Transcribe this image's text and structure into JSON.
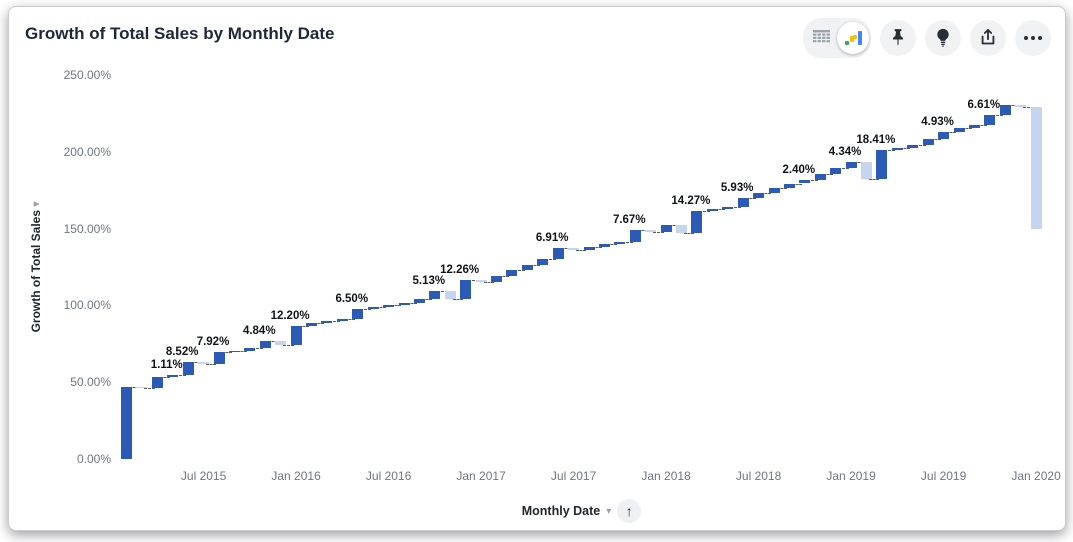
{
  "header": {
    "title": "Growth of Total Sales by Monthly Date"
  },
  "toolbar": {
    "icons": [
      "table-icon",
      "chart-icon",
      "pin-icon",
      "lightbulb-icon",
      "export-icon",
      "more-icon"
    ],
    "view_toggle_selected": "chart",
    "viz_icon_colors": {
      "green": "#34a853",
      "yellow": "#fbbc04",
      "blue": "#4285f4"
    },
    "button_bg": "#f1f2f4",
    "icon_color": "#272e36"
  },
  "chart_data": {
    "type": "bar",
    "subtype": "waterfall",
    "title": "Growth of Total Sales by Monthly Date",
    "xlabel": "Monthly Date",
    "ylabel": "Growth of Total Sales",
    "ylim": [
      0,
      250
    ],
    "grid": false,
    "legend": "none",
    "colors": {
      "increase": "#2b5bb7",
      "decrease": "#c6d4ef"
    },
    "y_ticks": [
      {
        "v": 250,
        "label": "250.00%"
      },
      {
        "v": 200,
        "label": "200.00%"
      },
      {
        "v": 150,
        "label": "150.00%"
      },
      {
        "v": 100,
        "label": "100.00%"
      },
      {
        "v": 50,
        "label": "50.00%"
      },
      {
        "v": 0,
        "label": "0.00%"
      }
    ],
    "x_ticks": [
      {
        "i": 5,
        "label": "Jul 2015"
      },
      {
        "i": 11,
        "label": "Jan 2016"
      },
      {
        "i": 17,
        "label": "Jul 2016"
      },
      {
        "i": 23,
        "label": "Jan 2017"
      },
      {
        "i": 29,
        "label": "Jul 2017"
      },
      {
        "i": 35,
        "label": "Jan 2018"
      },
      {
        "i": 41,
        "label": "Jul 2018"
      },
      {
        "i": 47,
        "label": "Jan 2019"
      },
      {
        "i": 53,
        "label": "Jul 2019"
      },
      {
        "i": 59,
        "label": "Jan 2020"
      }
    ],
    "bars": [
      {
        "m": "Feb 2015",
        "v": 47.0,
        "t": "i",
        "l": null
      },
      {
        "m": "Mar 2015",
        "v": -0.5,
        "t": "d",
        "l": null
      },
      {
        "m": "Apr 2015",
        "v": 7.0,
        "t": "i",
        "l": null
      },
      {
        "m": "May 2015",
        "v": 1.11,
        "t": "i",
        "l": "1.11%"
      },
      {
        "m": "Jun 2015",
        "v": 8.52,
        "t": "i",
        "l": "8.52%"
      },
      {
        "m": "Jul 2015",
        "v": -1.5,
        "t": "d",
        "l": null
      },
      {
        "m": "Aug 2015",
        "v": 7.92,
        "t": "i",
        "l": "7.92%"
      },
      {
        "m": "Sep 2015",
        "v": 1.0,
        "t": "i",
        "l": null
      },
      {
        "m": "Oct 2015",
        "v": 1.5,
        "t": "i",
        "l": null
      },
      {
        "m": "Nov 2015",
        "v": 4.84,
        "t": "i",
        "l": "4.84%"
      },
      {
        "m": "Dec 2015",
        "v": -2.5,
        "t": "d",
        "l": null
      },
      {
        "m": "Jan 2016",
        "v": 12.2,
        "t": "i",
        "l": "12.20%"
      },
      {
        "m": "Feb 2016",
        "v": 2.0,
        "t": "i",
        "l": null
      },
      {
        "m": "Mar 2016",
        "v": 1.0,
        "t": "i",
        "l": null
      },
      {
        "m": "Apr 2016",
        "v": 1.5,
        "t": "i",
        "l": null
      },
      {
        "m": "May 2016",
        "v": 6.5,
        "t": "i",
        "l": "6.50%"
      },
      {
        "m": "Jun 2016",
        "v": 1.5,
        "t": "i",
        "l": null
      },
      {
        "m": "Jul 2016",
        "v": 1.0,
        "t": "i",
        "l": null
      },
      {
        "m": "Aug 2016",
        "v": 1.5,
        "t": "i",
        "l": null
      },
      {
        "m": "Sep 2016",
        "v": 2.5,
        "t": "i",
        "l": null
      },
      {
        "m": "Oct 2016",
        "v": 5.13,
        "t": "i",
        "l": "5.13%"
      },
      {
        "m": "Nov 2016",
        "v": -5.0,
        "t": "d",
        "l": null
      },
      {
        "m": "Dec 2016",
        "v": 12.26,
        "t": "i",
        "l": "12.26%"
      },
      {
        "m": "Jan 2017",
        "v": -1.0,
        "t": "d",
        "l": null
      },
      {
        "m": "Feb 2017",
        "v": 3.5,
        "t": "i",
        "l": null
      },
      {
        "m": "Mar 2017",
        "v": 4.0,
        "t": "i",
        "l": null
      },
      {
        "m": "Apr 2017",
        "v": 3.5,
        "t": "i",
        "l": null
      },
      {
        "m": "May 2017",
        "v": 4.0,
        "t": "i",
        "l": null
      },
      {
        "m": "Jun 2017",
        "v": 6.91,
        "t": "i",
        "l": "6.91%"
      },
      {
        "m": "Jul 2017",
        "v": -1.5,
        "t": "d",
        "l": null
      },
      {
        "m": "Aug 2017",
        "v": 2.0,
        "t": "i",
        "l": null
      },
      {
        "m": "Sep 2017",
        "v": 2.0,
        "t": "i",
        "l": null
      },
      {
        "m": "Oct 2017",
        "v": 1.5,
        "t": "i",
        "l": null
      },
      {
        "m": "Nov 2017",
        "v": 7.67,
        "t": "i",
        "l": "7.67%"
      },
      {
        "m": "Dec 2017",
        "v": -1.5,
        "t": "d",
        "l": null
      },
      {
        "m": "Jan 2018",
        "v": 4.6,
        "t": "i",
        "l": null
      },
      {
        "m": "Feb 2018",
        "v": -5.0,
        "t": "d",
        "l": null
      },
      {
        "m": "Mar 2018",
        "v": 14.27,
        "t": "i",
        "l": "14.27%"
      },
      {
        "m": "Apr 2018",
        "v": 1.2,
        "t": "i",
        "l": null
      },
      {
        "m": "May 2018",
        "v": 1.5,
        "t": "i",
        "l": null
      },
      {
        "m": "Jun 2018",
        "v": 5.93,
        "t": "i",
        "l": "5.93%"
      },
      {
        "m": "Jul 2018",
        "v": 3.1,
        "t": "i",
        "l": null
      },
      {
        "m": "Aug 2018",
        "v": 3.1,
        "t": "i",
        "l": null
      },
      {
        "m": "Sep 2018",
        "v": 3.1,
        "t": "i",
        "l": null
      },
      {
        "m": "Oct 2018",
        "v": 2.4,
        "t": "i",
        "l": "2.40%"
      },
      {
        "m": "Nov 2018",
        "v": 3.7,
        "t": "i",
        "l": null
      },
      {
        "m": "Dec 2018",
        "v": 3.7,
        "t": "i",
        "l": null
      },
      {
        "m": "Jan 2019",
        "v": 4.34,
        "t": "i",
        "l": "4.34%"
      },
      {
        "m": "Feb 2019",
        "v": -11.0,
        "t": "d",
        "l": null
      },
      {
        "m": "Mar 2019",
        "v": 18.41,
        "t": "i",
        "l": "18.41%"
      },
      {
        "m": "Apr 2019",
        "v": 1.8,
        "t": "i",
        "l": null
      },
      {
        "m": "May 2019",
        "v": 2.0,
        "t": "i",
        "l": null
      },
      {
        "m": "Jun 2019",
        "v": 3.4,
        "t": "i",
        "l": null
      },
      {
        "m": "Jul 2019",
        "v": 4.93,
        "t": "i",
        "l": "4.93%"
      },
      {
        "m": "Aug 2019",
        "v": 2.2,
        "t": "i",
        "l": null
      },
      {
        "m": "Sep 2019",
        "v": 2.3,
        "t": "i",
        "l": null
      },
      {
        "m": "Oct 2019",
        "v": 6.61,
        "t": "i",
        "l": "6.61%"
      },
      {
        "m": "Nov 2019",
        "v": 6.5,
        "t": "i",
        "l": null
      },
      {
        "m": "Dec 2019",
        "v": -1.5,
        "t": "d",
        "l": null
      },
      {
        "m": "Jan 2020",
        "v": -79.15,
        "t": "d",
        "l": null
      }
    ]
  },
  "x_axis_controls": {
    "sort_arrow": "↑",
    "menu_caret": "▾"
  }
}
